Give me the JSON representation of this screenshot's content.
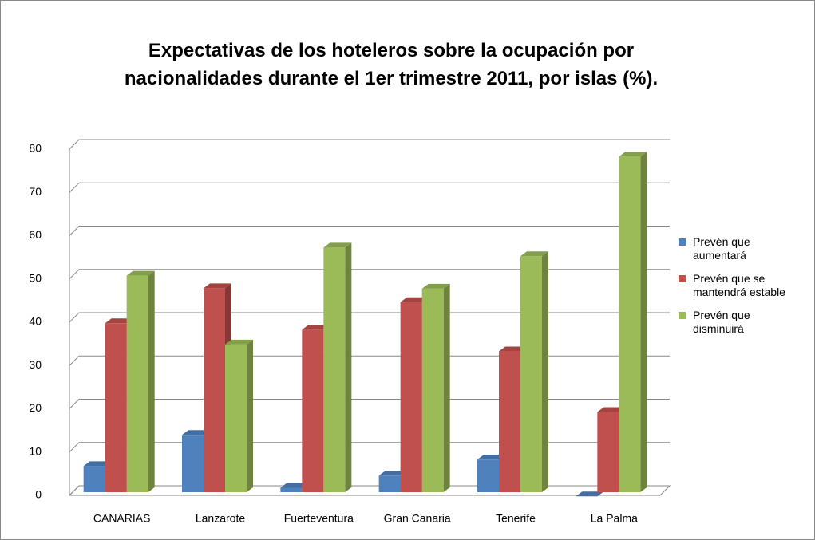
{
  "chart_data": {
    "type": "bar3d",
    "title": "Expectativas de los hoteleros sobre la ocupación por nacionalidades durante el 1er trimestre 2011, por islas (%).",
    "categories": [
      "CANARIAS",
      "Lanzarote",
      "Fuerteventura",
      "Gran Canaria",
      "Tenerife",
      "La Palma"
    ],
    "series": [
      {
        "name": "Prevén que aumentará",
        "color": "#4f81bd",
        "values": [
          7.5,
          14.7,
          2.5,
          5.3,
          9,
          0.5
        ]
      },
      {
        "name": "Prevén que se mantendrá estable",
        "color": "#c0504d",
        "values": [
          40.5,
          48.6,
          39,
          45.4,
          34,
          20
        ]
      },
      {
        "name": "Prevén que disminuirá",
        "color": "#9bbb59",
        "values": [
          51.5,
          35.6,
          58,
          48.5,
          56,
          79
        ]
      }
    ],
    "ylim": [
      0,
      80
    ],
    "yticks": [
      0,
      10,
      20,
      30,
      40,
      50,
      60,
      70,
      80
    ],
    "grid": true,
    "legend": "right"
  }
}
